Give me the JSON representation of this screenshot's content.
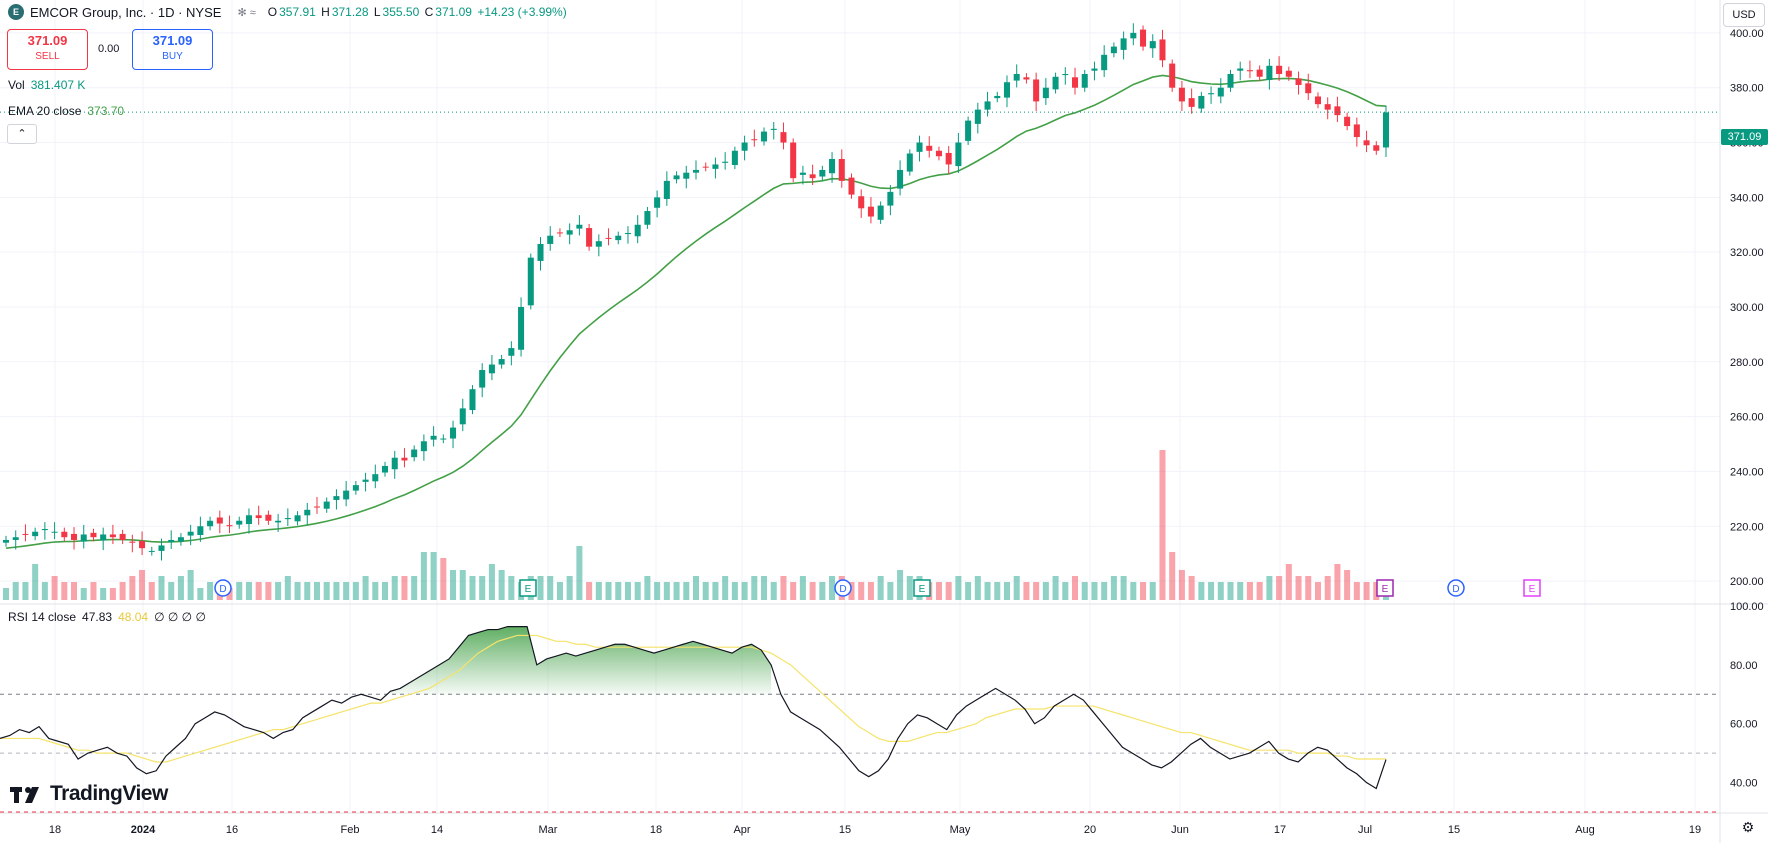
{
  "header": {
    "symbol_title": "EMCOR Group, Inc. · 1D · NYSE",
    "ohlc": {
      "open_label": "O",
      "open": "357.91",
      "high_label": "H",
      "high": "371.28",
      "low_label": "L",
      "low": "355.50",
      "close_label": "C",
      "close": "371.09",
      "change": "+14.23 (+3.99%)"
    }
  },
  "trade": {
    "sell_price": "371.09",
    "sell_label": "SELL",
    "spread": "0.00",
    "buy_price": "371.09",
    "buy_label": "BUY"
  },
  "indicators": {
    "vol_label": "Vol",
    "vol_value": "381.407 K",
    "ema_label": "EMA 20 close",
    "ema_value": "373.70",
    "rsi_label": "RSI 14 close",
    "rsi_value": "47.83",
    "rsi_ma_value": "48.04",
    "rsi_extra": "∅ ∅ ∅ ∅"
  },
  "axis": {
    "currency": "USD",
    "current_price": "371.09",
    "price_ticks": [
      "400.00",
      "380.00",
      "360.00",
      "340.00",
      "320.00",
      "300.00",
      "280.00",
      "260.00",
      "240.00",
      "220.00",
      "200.00"
    ],
    "rsi_ticks": [
      "100.00",
      "80.00",
      "60.00",
      "40.00"
    ],
    "time_ticks": [
      "18",
      "2024",
      "16",
      "Feb",
      "14",
      "Mar",
      "18",
      "Apr",
      "15",
      "May",
      "20",
      "Jun",
      "17",
      "Jul",
      "15",
      "Aug",
      "19"
    ]
  },
  "events": [
    "D",
    "E",
    "D",
    "E",
    "E",
    "D",
    "E"
  ],
  "branding": {
    "name": "TradingView"
  },
  "colors": {
    "up": "#089981",
    "down": "#f23645",
    "ema": "#43a047",
    "rsi": "#131722",
    "rsi_ma": "#f5e36b"
  },
  "chart_data": {
    "type": "candlestick",
    "title": "EMCOR Group, Inc. · 1D · NYSE",
    "ylim": [
      192,
      412
    ],
    "rsi_ylim": [
      30,
      100
    ],
    "closes": [
      215,
      216,
      217,
      218,
      219,
      218,
      216,
      215,
      217,
      216,
      217,
      216,
      215,
      214,
      212,
      211,
      213,
      215,
      216,
      218,
      220,
      222,
      221,
      220,
      222,
      224,
      223,
      222,
      222,
      223,
      224,
      226,
      227,
      229,
      231,
      233,
      235,
      237,
      239,
      242,
      245,
      244,
      248,
      251,
      253,
      252,
      256,
      263,
      270,
      277,
      279,
      281,
      285,
      300,
      318,
      323,
      326,
      327,
      328,
      330,
      322,
      324,
      325,
      326,
      327,
      330,
      335,
      340,
      346,
      348,
      349,
      350,
      351,
      352,
      353,
      357,
      360,
      361,
      364,
      365,
      360,
      347,
      349,
      347,
      350,
      354,
      346,
      341,
      336,
      333,
      337,
      342,
      350,
      356,
      360,
      357,
      355,
      352,
      360,
      368,
      372,
      375,
      377,
      382,
      385,
      383,
      375,
      380,
      384,
      385,
      380,
      385,
      387,
      392,
      395,
      398,
      400,
      395,
      397,
      390,
      380,
      375,
      373,
      377,
      378,
      380,
      385,
      387,
      386,
      384,
      388,
      385,
      384,
      381,
      378,
      374,
      372,
      370,
      366,
      362,
      359,
      357,
      371
    ],
    "ema20_start": 212,
    "volume_relative": [
      2,
      3,
      3,
      6,
      3,
      4,
      3,
      3,
      2,
      3,
      2,
      2,
      3,
      4,
      5,
      3,
      4,
      3,
      4,
      5,
      2,
      3,
      3,
      2,
      3,
      3,
      3,
      3,
      3,
      4,
      3,
      3,
      3,
      3,
      3,
      3,
      3,
      4,
      3,
      3,
      4,
      4,
      4,
      8,
      8,
      7,
      5,
      5,
      4,
      4,
      6,
      5,
      4,
      3,
      4,
      4,
      4,
      3,
      4,
      9,
      3,
      3,
      3,
      3,
      3,
      3,
      4,
      3,
      3,
      3,
      3,
      4,
      3,
      3,
      4,
      3,
      3,
      4,
      4,
      3,
      4,
      3,
      4,
      3,
      3,
      4,
      4,
      3,
      3,
      3,
      4,
      3,
      5,
      4,
      4,
      3,
      3,
      3,
      4,
      3,
      4,
      3,
      3,
      3,
      4,
      3,
      3,
      3,
      4,
      3,
      4,
      3,
      3,
      3,
      4,
      4,
      3,
      3,
      3,
      25,
      8,
      5,
      4,
      3,
      3,
      3,
      3,
      3,
      3,
      3,
      4,
      4,
      6,
      4,
      4,
      3,
      4,
      6,
      5,
      3,
      3,
      3,
      3
    ],
    "rsi_values": [
      55,
      56,
      58,
      57,
      59,
      55,
      54,
      53,
      48,
      50,
      51,
      52,
      50,
      49,
      45,
      43,
      44,
      49,
      52,
      55,
      60,
      62,
      64,
      63,
      61,
      59,
      58,
      57,
      55,
      57,
      58,
      62,
      64,
      66,
      68,
      67,
      69,
      70,
      69,
      68,
      71,
      72,
      74,
      76,
      78,
      80,
      82,
      86,
      90,
      91,
      92,
      92,
      93,
      93,
      93,
      80,
      82,
      83,
      84,
      83,
      84,
      85,
      86,
      87,
      87,
      86,
      85,
      84,
      85,
      86,
      87,
      88,
      87,
      86,
      85,
      84,
      86,
      87,
      85,
      80,
      70,
      64,
      62,
      60,
      58,
      55,
      52,
      48,
      44,
      42,
      44,
      48,
      55,
      60,
      63,
      62,
      60,
      58,
      63,
      66,
      68,
      70,
      72,
      70,
      68,
      65,
      60,
      62,
      66,
      68,
      70,
      68,
      64,
      60,
      56,
      52,
      50,
      48,
      46,
      45,
      47,
      50,
      53,
      55,
      52,
      50,
      48,
      49,
      50,
      52,
      54,
      50,
      48,
      47,
      50,
      52,
      51,
      48,
      45,
      43,
      40,
      38,
      47.83
    ],
    "rsi_ma_values": [
      55,
      55,
      55,
      55,
      55,
      54,
      53,
      52,
      51,
      51,
      50,
      50,
      50,
      50,
      49,
      48,
      47,
      47,
      48,
      49,
      50,
      51,
      52,
      53,
      54,
      55,
      56,
      57,
      58,
      58,
      59,
      60,
      61,
      62,
      63,
      64,
      65,
      66,
      67,
      67,
      68,
      69,
      70,
      71,
      72,
      74,
      76,
      78,
      81,
      84,
      86,
      88,
      89,
      90,
      90,
      90,
      89,
      88,
      88,
      87,
      87,
      86,
      86,
      86,
      86,
      86,
      86,
      86,
      86,
      86,
      86,
      86,
      86,
      86,
      86,
      86,
      86,
      86,
      85,
      84,
      82,
      80,
      77,
      74,
      71,
      68,
      65,
      62,
      59,
      57,
      55,
      54,
      54,
      54,
      55,
      56,
      57,
      57,
      58,
      59,
      60,
      62,
      63,
      64,
      65,
      65,
      65,
      65,
      66,
      66,
      66,
      66,
      66,
      65,
      64,
      63,
      62,
      61,
      60,
      59,
      58,
      57,
      57,
      56,
      55,
      54,
      53,
      52,
      51,
      51,
      51,
      51,
      51,
      50,
      50,
      50,
      50,
      49,
      49,
      48,
      48,
      48,
      48.04
    ]
  }
}
